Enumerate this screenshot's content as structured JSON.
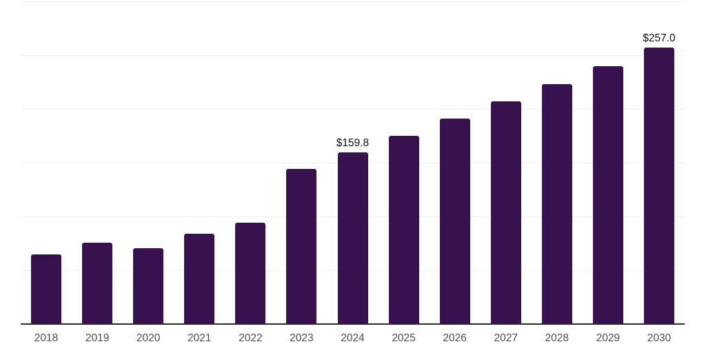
{
  "chart_data": {
    "type": "bar",
    "title": "",
    "xlabel": "",
    "ylabel": "",
    "categories": [
      "2018",
      "2019",
      "2020",
      "2021",
      "2022",
      "2023",
      "2024",
      "2025",
      "2026",
      "2027",
      "2028",
      "2029",
      "2030"
    ],
    "values": [
      64.9,
      75.5,
      70.6,
      84.0,
      94.3,
      144.0,
      159.8,
      174.9,
      190.8,
      207.0,
      222.9,
      240.0,
      257.0
    ],
    "labeled_points": [
      {
        "category": "2024",
        "label": "$159.8"
      },
      {
        "category": "2030",
        "label": "$257.0"
      }
    ],
    "ylim": [
      0,
      300
    ],
    "gridline_values": [
      50,
      100,
      150,
      200,
      250,
      300
    ],
    "grid": "horizontal-only",
    "legend": "none",
    "y_tick_labels_visible": false,
    "colors": {
      "bar": "#38124f",
      "axis_line": "#2b2b2b",
      "gridline": "#f0f0f0",
      "tick_label": "#4d4d4d",
      "data_label": "#111111",
      "background": "#ffffff"
    }
  }
}
